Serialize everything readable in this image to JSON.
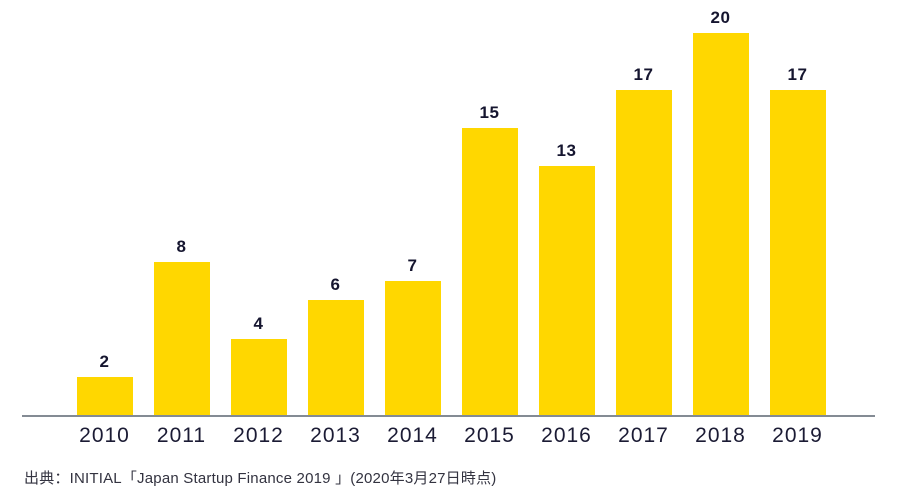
{
  "chart_data": {
    "type": "bar",
    "title": "",
    "categories": [
      "2010",
      "2011",
      "2012",
      "2013",
      "2014",
      "2015",
      "2016",
      "2017",
      "2018",
      "2019"
    ],
    "values": [
      2,
      8,
      4,
      6,
      7,
      15,
      13,
      17,
      20,
      17
    ],
    "xlabel": "",
    "ylabel": "",
    "ylim": [
      0,
      20
    ],
    "grid": false,
    "legend": false,
    "data_labels": true,
    "bar_color": "#FFD700",
    "value_label_color": "#15152f",
    "tick_label_color": "#1b1b34",
    "axis_line_color": "#848b94"
  },
  "source": {
    "text": "出典：INITIAL「Japan Startup Finance 2019 」(2020年3月27日時点)"
  }
}
